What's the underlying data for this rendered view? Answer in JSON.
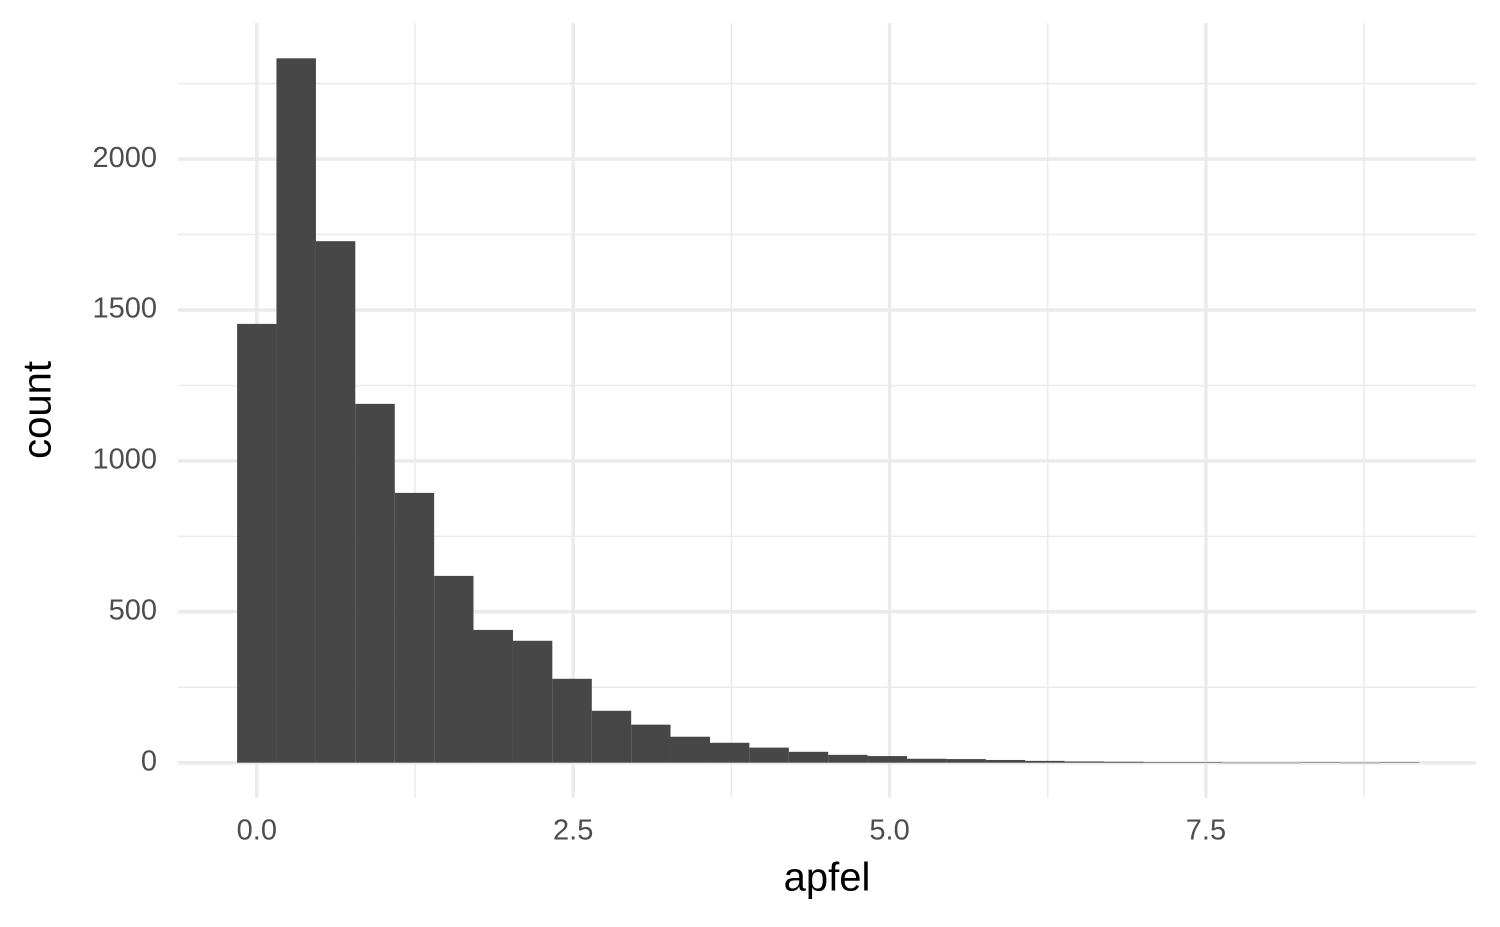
{
  "chart_data": {
    "type": "histogram",
    "x_label": "apfel",
    "y_label": "count",
    "bins": [
      -0.156,
      0.155,
      0.467,
      0.778,
      1.09,
      1.401,
      1.712,
      2.024,
      2.335,
      2.647,
      2.958,
      3.269,
      3.581,
      3.892,
      4.204,
      4.515,
      4.826,
      5.138,
      5.449,
      5.761,
      6.072,
      6.383,
      6.695,
      7.006,
      7.318,
      7.629,
      7.94,
      8.252,
      8.563,
      8.875,
      9.186
    ],
    "counts": [
      1454,
      2334,
      1728,
      1189,
      894,
      619,
      440,
      404,
      278,
      172,
      126,
      86,
      66,
      50,
      36,
      26,
      22,
      13,
      12,
      9,
      6,
      4,
      3,
      2,
      2,
      0,
      0,
      1,
      0,
      1
    ],
    "color": "#474747",
    "xlim": [
      -0.623,
      9.634
    ],
    "ylim": [
      -117,
      2451
    ],
    "xticks": [
      {
        "value": 0,
        "label": "0.0"
      },
      2.5,
      {
        "value": 5,
        "label": "5.0"
      },
      7.5
    ],
    "yticks": [
      0,
      500,
      1000,
      1500,
      2000
    ],
    "xminorticks": [
      1.25,
      3.75,
      6.25,
      8.75
    ],
    "yminorticks": [
      250,
      750,
      1250,
      1750,
      2250
    ],
    "grid": true
  }
}
